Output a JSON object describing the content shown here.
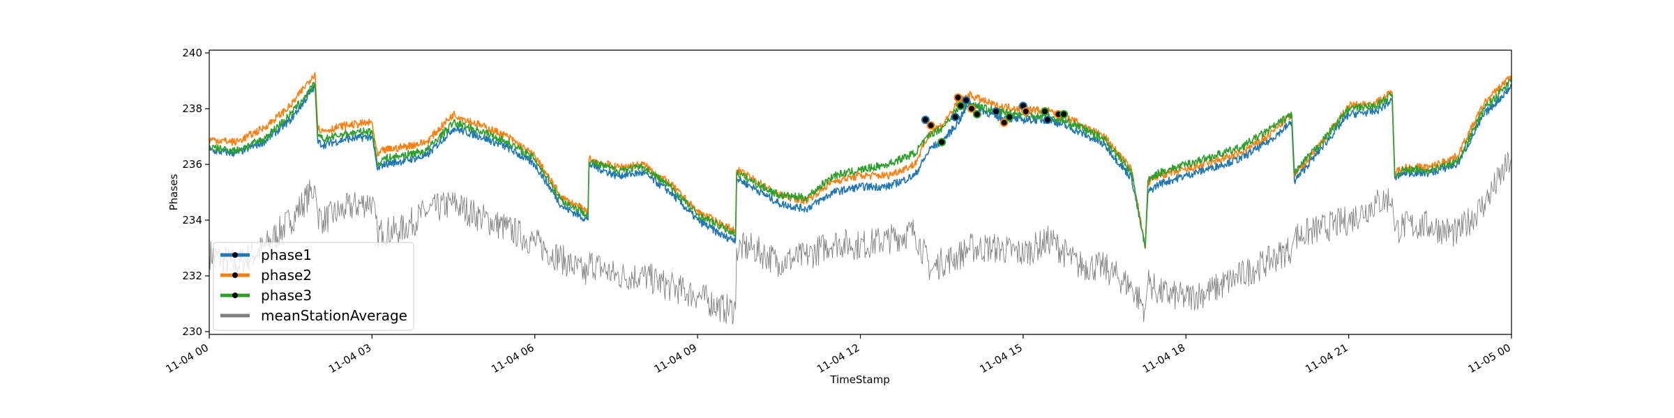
{
  "chart_data": {
    "type": "line",
    "title": "",
    "xlabel": "TimeStamp",
    "ylabel": "Phases",
    "ylim": [
      229.9,
      240.1
    ],
    "xlim_hours": [
      0,
      24
    ],
    "x_ticks": [
      {
        "hour": 0,
        "label": "11-04 00"
      },
      {
        "hour": 3,
        "label": "11-04 03"
      },
      {
        "hour": 6,
        "label": "11-04 06"
      },
      {
        "hour": 9,
        "label": "11-04 09"
      },
      {
        "hour": 12,
        "label": "11-04 12"
      },
      {
        "hour": 15,
        "label": "11-04 15"
      },
      {
        "hour": 18,
        "label": "11-04 18"
      },
      {
        "hour": 21,
        "label": "11-04 21"
      },
      {
        "hour": 24,
        "label": "11-05 00"
      }
    ],
    "y_ticks": [
      230,
      232,
      234,
      236,
      238,
      240
    ],
    "legend_placement": "lower-left",
    "grid": false,
    "series": [
      {
        "name": "phase1",
        "color": "#1f77b4",
        "x": [
          0,
          0.5,
          1.0,
          1.5,
          1.95,
          2.0,
          2.1,
          2.5,
          3.0,
          3.1,
          3.2,
          3.5,
          4.0,
          4.5,
          5.0,
          5.5,
          6.0,
          6.5,
          6.98,
          7.0,
          7.5,
          8.0,
          8.5,
          9.0,
          9.5,
          9.7,
          9.72,
          10.0,
          10.5,
          11.0,
          11.5,
          12.0,
          12.5,
          13.0,
          13.3,
          13.5,
          13.8,
          14.0,
          14.5,
          15.0,
          15.5,
          16.0,
          16.5,
          17.0,
          17.25,
          17.3,
          17.5,
          18.0,
          18.5,
          19.0,
          19.5,
          19.95,
          20.0,
          20.5,
          21.0,
          21.5,
          21.8,
          21.85,
          22.0,
          22.5,
          23.0,
          23.5,
          24.0
        ],
        "y": [
          236.5,
          236.4,
          236.8,
          237.6,
          238.8,
          236.8,
          236.7,
          236.9,
          237.0,
          235.8,
          236.0,
          236.1,
          236.3,
          237.3,
          237.0,
          236.6,
          236.0,
          234.5,
          234.0,
          236.0,
          235.6,
          235.7,
          235.0,
          234.0,
          233.4,
          233.3,
          235.5,
          235.2,
          234.6,
          234.4,
          235.0,
          235.2,
          235.2,
          235.6,
          236.6,
          236.8,
          237.5,
          238.2,
          237.7,
          237.6,
          237.6,
          237.2,
          236.7,
          235.5,
          233.0,
          235.0,
          235.3,
          235.6,
          235.9,
          236.2,
          236.8,
          237.5,
          235.4,
          236.6,
          237.8,
          237.9,
          238.3,
          235.5,
          235.7,
          235.7,
          236.0,
          237.8,
          238.8
        ]
      },
      {
        "name": "phase2",
        "color": "#ff7f0e",
        "x": [
          0,
          0.5,
          1.0,
          1.5,
          1.95,
          2.0,
          2.1,
          2.5,
          3.0,
          3.1,
          3.2,
          3.5,
          4.0,
          4.5,
          5.0,
          5.5,
          6.0,
          6.5,
          6.98,
          7.0,
          7.5,
          8.0,
          8.5,
          9.0,
          9.5,
          9.7,
          9.72,
          10.0,
          10.5,
          11.0,
          11.5,
          12.0,
          12.5,
          13.0,
          13.3,
          13.5,
          13.8,
          14.0,
          14.5,
          15.0,
          15.5,
          16.0,
          16.5,
          17.0,
          17.25,
          17.3,
          17.5,
          18.0,
          18.5,
          19.0,
          19.5,
          19.95,
          20.0,
          20.5,
          21.0,
          21.5,
          21.8,
          21.85,
          22.0,
          22.5,
          23.0,
          23.5,
          24.0
        ],
        "y": [
          236.9,
          236.8,
          237.3,
          238.1,
          239.3,
          237.3,
          237.2,
          237.4,
          237.5,
          236.3,
          236.5,
          236.6,
          236.8,
          237.8,
          237.4,
          237.0,
          236.3,
          234.8,
          234.3,
          236.2,
          235.9,
          236.0,
          235.3,
          234.3,
          233.8,
          233.6,
          235.8,
          235.5,
          234.9,
          234.7,
          235.4,
          235.6,
          235.6,
          236.0,
          237.2,
          237.4,
          238.2,
          238.5,
          238.1,
          238.0,
          237.9,
          237.5,
          237.0,
          235.8,
          233.0,
          235.3,
          235.6,
          235.8,
          236.1,
          236.4,
          237.0,
          237.8,
          235.6,
          236.8,
          238.1,
          238.2,
          238.6,
          235.7,
          235.9,
          235.9,
          236.3,
          238.2,
          239.2
        ]
      },
      {
        "name": "phase3",
        "color": "#2ca02c",
        "x": [
          0,
          0.5,
          1.0,
          1.5,
          1.95,
          2.0,
          2.1,
          2.5,
          3.0,
          3.1,
          3.2,
          3.5,
          4.0,
          4.5,
          5.0,
          5.5,
          6.0,
          6.5,
          6.98,
          7.0,
          7.5,
          8.0,
          8.5,
          9.0,
          9.5,
          9.7,
          9.72,
          10.0,
          10.5,
          11.0,
          11.5,
          12.0,
          12.5,
          13.0,
          13.3,
          13.5,
          13.8,
          14.0,
          14.5,
          15.0,
          15.5,
          16.0,
          16.5,
          17.0,
          17.25,
          17.3,
          17.5,
          18.0,
          18.5,
          19.0,
          19.5,
          19.95,
          20.0,
          20.5,
          21.0,
          21.5,
          21.8,
          21.85,
          22.0,
          22.5,
          23.0,
          23.5,
          24.0
        ],
        "y": [
          236.6,
          236.5,
          236.9,
          237.8,
          238.9,
          237.0,
          236.9,
          237.1,
          237.2,
          236.0,
          236.2,
          236.3,
          236.5,
          237.5,
          237.2,
          236.8,
          236.2,
          234.7,
          234.2,
          236.1,
          235.8,
          235.9,
          235.2,
          234.2,
          233.7,
          233.5,
          235.7,
          235.4,
          234.9,
          234.8,
          235.6,
          235.8,
          236.0,
          236.4,
          237.1,
          237.3,
          238.0,
          238.2,
          237.9,
          237.8,
          237.7,
          237.4,
          236.9,
          235.7,
          233.0,
          235.4,
          235.7,
          236.0,
          236.3,
          236.6,
          237.2,
          237.8,
          235.7,
          236.8,
          238.0,
          238.1,
          238.5,
          235.6,
          235.8,
          235.8,
          236.1,
          238.0,
          239.0
        ]
      },
      {
        "name": "meanStationAverage",
        "color": "#808080",
        "x": [
          0,
          0.5,
          1.0,
          1.5,
          1.95,
          2.0,
          2.1,
          2.5,
          3.0,
          3.1,
          3.2,
          3.5,
          4.0,
          4.5,
          5.0,
          5.5,
          6.0,
          6.5,
          6.98,
          7.0,
          7.5,
          8.0,
          8.5,
          9.0,
          9.5,
          9.7,
          9.72,
          10.0,
          10.5,
          11.0,
          11.5,
          12.0,
          12.5,
          13.0,
          13.3,
          13.5,
          13.8,
          14.0,
          14.5,
          15.0,
          15.5,
          16.0,
          16.5,
          17.0,
          17.25,
          17.3,
          17.5,
          18.0,
          18.5,
          19.0,
          19.5,
          19.95,
          20.0,
          20.5,
          21.0,
          21.5,
          21.8,
          21.85,
          22.0,
          22.5,
          23.0,
          23.5,
          24.0
        ],
        "y": [
          232.8,
          232.4,
          233.0,
          234.0,
          235.2,
          234.2,
          234.0,
          234.4,
          234.7,
          233.5,
          233.6,
          233.6,
          234.3,
          234.6,
          234.1,
          233.7,
          233.2,
          232.6,
          232.0,
          232.5,
          232.0,
          232.0,
          231.6,
          231.3,
          230.8,
          230.8,
          233.0,
          233.0,
          232.5,
          232.7,
          233.2,
          233.1,
          233.3,
          233.6,
          232.2,
          232.5,
          232.7,
          233.0,
          233.0,
          232.8,
          233.3,
          232.4,
          232.3,
          231.6,
          230.8,
          231.8,
          231.4,
          231.2,
          231.5,
          232.0,
          232.5,
          233.0,
          233.4,
          233.7,
          234.0,
          234.6,
          234.8,
          233.6,
          233.8,
          233.8,
          233.5,
          234.6,
          236.2
        ]
      }
    ],
    "highlighted_points": [
      {
        "x": 13.2,
        "y": 237.6
      },
      {
        "x": 13.3,
        "y": 237.4
      },
      {
        "x": 13.5,
        "y": 236.8
      },
      {
        "x": 13.75,
        "y": 237.7
      },
      {
        "x": 13.8,
        "y": 238.4
      },
      {
        "x": 13.85,
        "y": 238.1
      },
      {
        "x": 13.95,
        "y": 238.3
      },
      {
        "x": 14.05,
        "y": 238.0
      },
      {
        "x": 14.15,
        "y": 237.8
      },
      {
        "x": 14.5,
        "y": 237.9
      },
      {
        "x": 14.65,
        "y": 237.5
      },
      {
        "x": 14.75,
        "y": 237.7
      },
      {
        "x": 15.0,
        "y": 238.1
      },
      {
        "x": 15.05,
        "y": 237.9
      },
      {
        "x": 15.4,
        "y": 237.9
      },
      {
        "x": 15.45,
        "y": 237.6
      },
      {
        "x": 15.65,
        "y": 237.8
      },
      {
        "x": 15.75,
        "y": 237.8
      }
    ]
  }
}
